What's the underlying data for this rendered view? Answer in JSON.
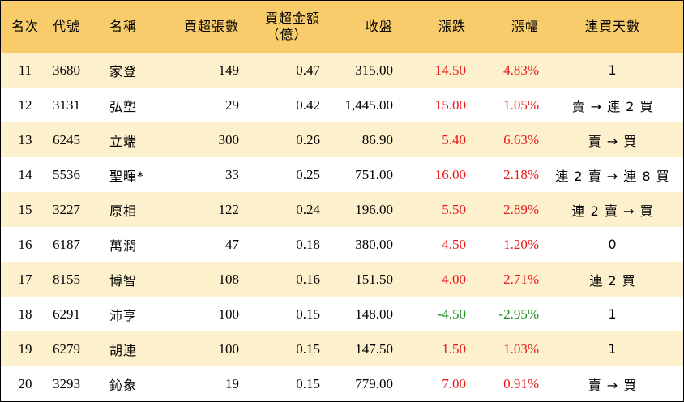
{
  "headers": {
    "rank": "名次",
    "code": "代號",
    "name": "名稱",
    "lots": "買超張數",
    "amount_line1": "買超金額",
    "amount_line2": "（億）",
    "close": "收盤",
    "change": "漲跌",
    "pct": "漲幅",
    "streak": "連買天數"
  },
  "rows": [
    {
      "rank": "11",
      "code": "3680",
      "name": "家登",
      "lots": "149",
      "amount": "0.47",
      "close": "315.00",
      "change": "14.50",
      "pct": "4.83%",
      "streak": "1",
      "dir": "up"
    },
    {
      "rank": "12",
      "code": "3131",
      "name": "弘塑",
      "lots": "29",
      "amount": "0.42",
      "close": "1,445.00",
      "change": "15.00",
      "pct": "1.05%",
      "streak": "賣 → 連 2 買",
      "dir": "up"
    },
    {
      "rank": "13",
      "code": "6245",
      "name": "立端",
      "lots": "300",
      "amount": "0.26",
      "close": "86.90",
      "change": "5.40",
      "pct": "6.63%",
      "streak": "賣 → 買",
      "dir": "up"
    },
    {
      "rank": "14",
      "code": "5536",
      "name": "聖暉*",
      "lots": "33",
      "amount": "0.25",
      "close": "751.00",
      "change": "16.00",
      "pct": "2.18%",
      "streak": "連 2 賣 → 連 8 買",
      "dir": "up"
    },
    {
      "rank": "15",
      "code": "3227",
      "name": "原相",
      "lots": "122",
      "amount": "0.24",
      "close": "196.00",
      "change": "5.50",
      "pct": "2.89%",
      "streak": "連 2 賣 → 買",
      "dir": "up"
    },
    {
      "rank": "16",
      "code": "6187",
      "name": "萬潤",
      "lots": "47",
      "amount": "0.18",
      "close": "380.00",
      "change": "4.50",
      "pct": "1.20%",
      "streak": "0",
      "dir": "up"
    },
    {
      "rank": "17",
      "code": "8155",
      "name": "博智",
      "lots": "108",
      "amount": "0.16",
      "close": "151.50",
      "change": "4.00",
      "pct": "2.71%",
      "streak": "連 2 買",
      "dir": "up"
    },
    {
      "rank": "18",
      "code": "6291",
      "name": "沛亨",
      "lots": "100",
      "amount": "0.15",
      "close": "148.00",
      "change": "-4.50",
      "pct": "-2.95%",
      "streak": "1",
      "dir": "down"
    },
    {
      "rank": "19",
      "code": "6279",
      "name": "胡連",
      "lots": "100",
      "amount": "0.15",
      "close": "147.50",
      "change": "1.50",
      "pct": "1.03%",
      "streak": "1",
      "dir": "up"
    },
    {
      "rank": "20",
      "code": "3293",
      "name": "鈊象",
      "lots": "19",
      "amount": "0.15",
      "close": "779.00",
      "change": "7.00",
      "pct": "0.91%",
      "streak": "賣 → 買",
      "dir": "up"
    }
  ],
  "colors": {
    "header_bg": "#f8cc6b",
    "row_odd_bg": "#fdf1cd",
    "row_even_bg": "#ffffff",
    "up": "#e8191b",
    "down": "#1c8a1c"
  }
}
